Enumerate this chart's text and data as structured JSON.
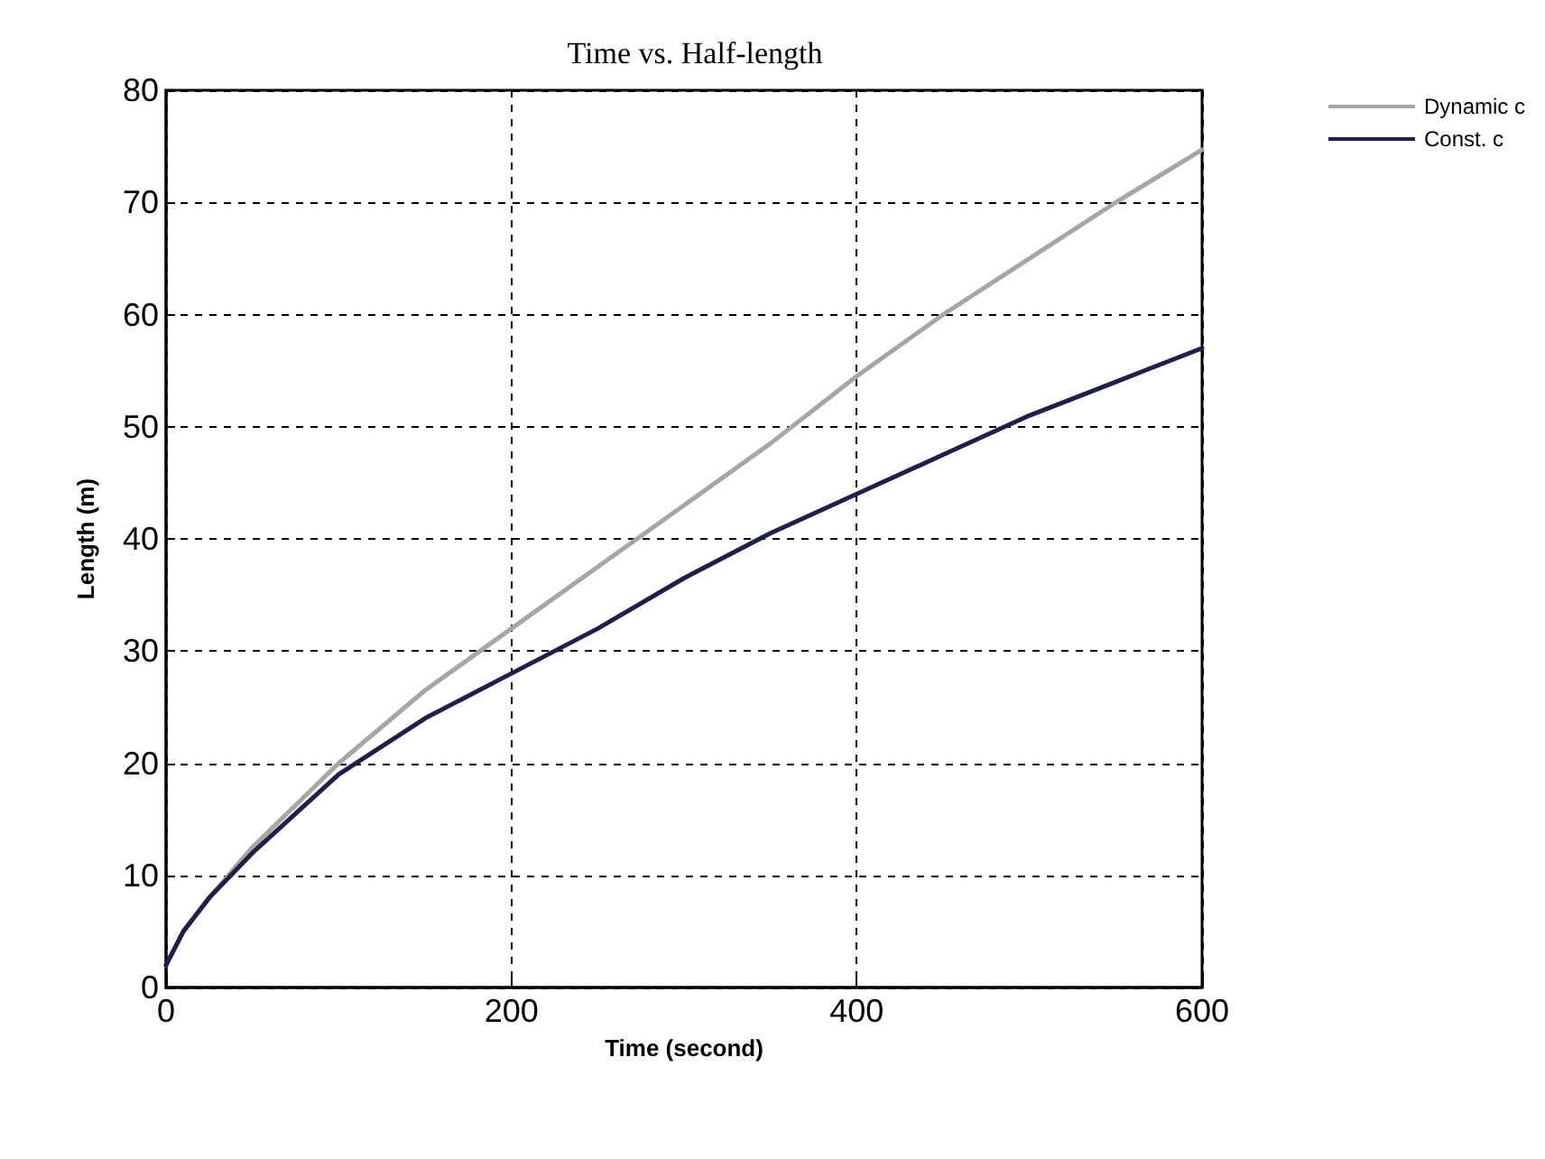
{
  "chart_data": {
    "type": "line",
    "title": "Time vs. Half-length",
    "xlabel": "Time (second)",
    "ylabel": "Length (m)",
    "xlim": [
      0,
      600
    ],
    "xticks": [
      0,
      200,
      400,
      600
    ],
    "ylim": [
      0,
      80
    ],
    "yticks": [
      0,
      10,
      20,
      30,
      40,
      50,
      60,
      70,
      80
    ],
    "grid": true,
    "legend": "top right",
    "marker": "none",
    "line_style": "solid",
    "series": [
      {
        "name": "Dynamic c",
        "color": "#a6a6a6",
        "x": [
          0,
          10,
          25,
          50,
          100,
          150,
          200,
          250,
          300,
          350,
          400,
          450,
          500,
          550,
          600
        ],
        "values": [
          2,
          5,
          8,
          12.5,
          20,
          26.5,
          32,
          37.5,
          43,
          48.5,
          54.5,
          60,
          65,
          70,
          74.7
        ]
      },
      {
        "name": "Const. c",
        "color": "#1f1f4a",
        "x": [
          0,
          10,
          25,
          50,
          100,
          150,
          200,
          250,
          300,
          350,
          400,
          450,
          500,
          550,
          600
        ],
        "values": [
          2,
          5,
          8,
          12,
          19,
          24,
          28,
          32,
          36.5,
          40.5,
          44,
          47.5,
          51,
          54,
          57
        ]
      }
    ]
  }
}
